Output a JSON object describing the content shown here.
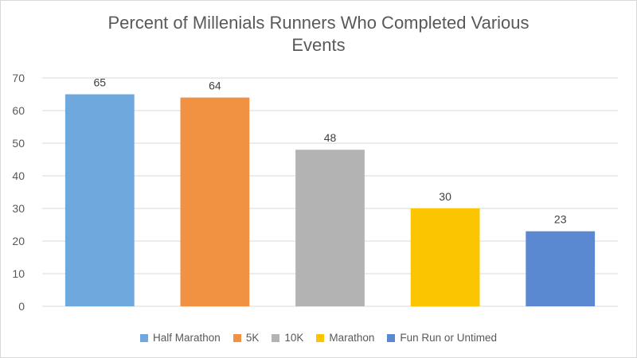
{
  "chart_data": {
    "type": "bar",
    "title_lines": [
      "Percent of Millenials Runners Who Completed Various",
      "Events"
    ],
    "categories": [
      "Half Marathon",
      "5K",
      "10K",
      "Marathon",
      "Fun Run or Untimed"
    ],
    "values": [
      65,
      64,
      48,
      30,
      23
    ],
    "data_labels": [
      "65",
      "64",
      "48",
      "30",
      "23"
    ],
    "colors": [
      "#6fa8dc",
      "#f09242",
      "#b3b3b3",
      "#fbc502",
      "#5b89d1"
    ],
    "ylim": [
      0,
      70
    ],
    "yticks": [
      0,
      10,
      20,
      30,
      40,
      50,
      60,
      70
    ],
    "xlabel": "",
    "ylabel": "",
    "grid": true,
    "legend_position": "bottom"
  }
}
